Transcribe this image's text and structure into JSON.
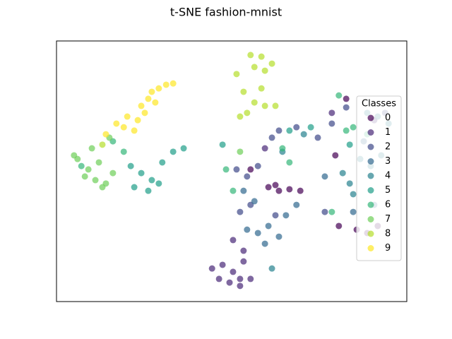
{
  "chart_data": {
    "type": "scatter",
    "title": "t-SNE fashion-mnist",
    "xlim": [
      0,
      100
    ],
    "ylim": [
      0,
      100
    ],
    "grid": false,
    "legend_title": "Classes",
    "legend": "center right",
    "alpha": 0.7,
    "series": [
      {
        "name": "0",
        "color": "#440154",
        "x": [
          60.5,
          63.5,
          66.5,
          69.6,
          62.5,
          85.7,
          88.7,
          91.7,
          80.6,
          79.6,
          82.7,
          55.4
        ],
        "y": [
          43.9,
          42.5,
          43.1,
          42.5,
          44.7,
          27.6,
          26.3,
          29.0,
          29.0,
          56.1,
          77.8,
          50.7
        ]
      },
      {
        "name": "1",
        "color": "#482878",
        "x": [
          44.4,
          47.4,
          50.4,
          53.4,
          52.4,
          49.4,
          55.4,
          46.4,
          53.4,
          52.4,
          50.4,
          59.5,
          78.6,
          90.7
        ],
        "y": [
          12.7,
          14.1,
          11.4,
          15.4,
          8.7,
          7.3,
          8.7,
          8.7,
          19.5,
          6.0,
          23.6,
          58.8,
          72.4,
          69.6
        ]
      },
      {
        "name": "2",
        "color": "#3e4989",
        "x": [
          51.4,
          54.4,
          57.5,
          61.5,
          63.5,
          68.5,
          74.6,
          78.6,
          82.7,
          52.4,
          62.5,
          55.4,
          93.8,
          76.6
        ],
        "y": [
          50.7,
          48.0,
          52.0,
          62.9,
          65.6,
          66.9,
          62.9,
          68.3,
          74.5,
          34.4,
          33.1,
          37.1,
          72.4,
          34.4
        ]
      },
      {
        "name": "3",
        "color": "#31688e",
        "x": [
          54.4,
          57.5,
          60.5,
          63.5,
          65.5,
          59.5,
          53.4,
          56.5,
          68.5,
          76.6,
          90.7,
          87.7,
          84.7
        ],
        "y": [
          27.6,
          26.3,
          29.0,
          24.9,
          33.1,
          22.2,
          42.5,
          38.5,
          37.1,
          48.0,
          37.1,
          61.5,
          34.4
        ]
      },
      {
        "name": "4",
        "color": "#26828e",
        "x": [
          81.7,
          83.7,
          86.7,
          89.7,
          92.7,
          84.7,
          88.7,
          91.7,
          94.8,
          64.5,
          61.5,
          70.6
        ],
        "y": [
          49.3,
          45.3,
          54.7,
          52.0,
          56.1,
          41.2,
          72.4,
          71.0,
          68.3,
          57.5,
          12.7,
          64.2
        ]
      },
      {
        "name": "5",
        "color": "#1f9e89",
        "x": [
          21.2,
          24.2,
          27.2,
          22.2,
          26.2,
          29.2,
          30.2,
          33.3,
          36.3,
          47.4,
          83.7,
          66.5,
          72.6
        ],
        "y": [
          52.0,
          49.3,
          46.6,
          43.9,
          42.5,
          45.3,
          53.4,
          57.5,
          58.8,
          60.2,
          60.2,
          65.6,
          66.9
        ]
      },
      {
        "name": "6",
        "color": "#35b779",
        "x": [
          16.1,
          7.1,
          19.2,
          48.4,
          82.7,
          84.7,
          88.7,
          66.5,
          64.5,
          78.6,
          50.4,
          80.6
        ],
        "y": [
          61.5,
          52.0,
          57.5,
          50.7,
          65.6,
          66.9,
          64.2,
          53.4,
          58.8,
          34.4,
          42.5,
          79.1
        ]
      },
      {
        "name": "7",
        "color": "#6ece58",
        "x": [
          6.0,
          9.1,
          11.1,
          14.1,
          8.1,
          16.1,
          12.1,
          10.1,
          13.1,
          5.0,
          52.4,
          15.1
        ],
        "y": [
          54.7,
          50.7,
          46.6,
          45.3,
          48.0,
          49.3,
          53.4,
          58.8,
          43.9,
          56.1,
          57.5,
          62.9
        ]
      },
      {
        "name": "8",
        "color": "#b5de2b",
        "x": [
          55.4,
          58.5,
          61.5,
          56.5,
          59.5,
          53.4,
          58.5,
          56.5,
          59.5,
          52.4,
          54.4,
          51.4,
          13.1,
          62.5
        ],
        "y": [
          94.6,
          94.0,
          91.3,
          90.0,
          88.6,
          80.5,
          81.8,
          76.4,
          75.1,
          71.0,
          72.4,
          87.3,
          60.2,
          75.1
        ]
      },
      {
        "name": "9",
        "color": "#fde725",
        "x": [
          14.1,
          17.1,
          20.2,
          23.2,
          24.2,
          26.2,
          27.2,
          29.2,
          31.3,
          33.3,
          22.2,
          19.2,
          28.2,
          25.2
        ],
        "y": [
          64.2,
          68.3,
          71.0,
          69.6,
          75.1,
          77.8,
          80.5,
          81.8,
          83.2,
          83.7,
          65.6,
          66.9,
          76.4,
          72.4
        ]
      }
    ]
  }
}
